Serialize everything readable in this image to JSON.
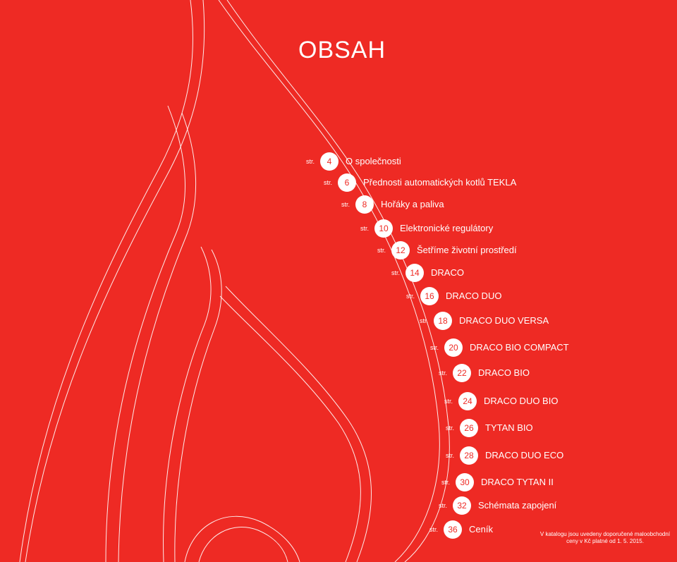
{
  "page": {
    "title": "OBSAH",
    "prefix": "str.",
    "toc": [
      {
        "page": "4",
        "label": "O společnosti"
      },
      {
        "page": "6",
        "label": "Přednosti automatických kotlů TEKLA"
      },
      {
        "page": "8",
        "label": "Hořáky a paliva"
      },
      {
        "page": "10",
        "label": "Elektronické regulátory"
      },
      {
        "page": "12",
        "label": "Šetříme životní prostředí"
      },
      {
        "page": "14",
        "label": "DRACO"
      },
      {
        "page": "16",
        "label": "DRACO DUO"
      },
      {
        "page": "18",
        "label": "DRACO DUO VERSA"
      },
      {
        "page": "20",
        "label": "DRACO BIO COMPACT"
      },
      {
        "page": "22",
        "label": "DRACO BIO"
      },
      {
        "page": "24",
        "label": "DRACO DUO BIO"
      },
      {
        "page": "26",
        "label": "TYTAN BIO"
      },
      {
        "page": "28",
        "label": "DRACO DUO ECO"
      },
      {
        "page": "30",
        "label": "DRACO TYTAN II"
      },
      {
        "page": "32",
        "label": "Schémata zapojení"
      },
      {
        "page": "36",
        "label": "Ceník"
      }
    ],
    "note": {
      "line1": "V katalogu jsou uvedeny doporučené maloobchodní",
      "line2": "ceny v Kč platné od 1. 5. 2015."
    }
  },
  "colors": {
    "background": "#ee2a24",
    "foreground": "#ffffff",
    "badge_text": "#ee2a24"
  }
}
